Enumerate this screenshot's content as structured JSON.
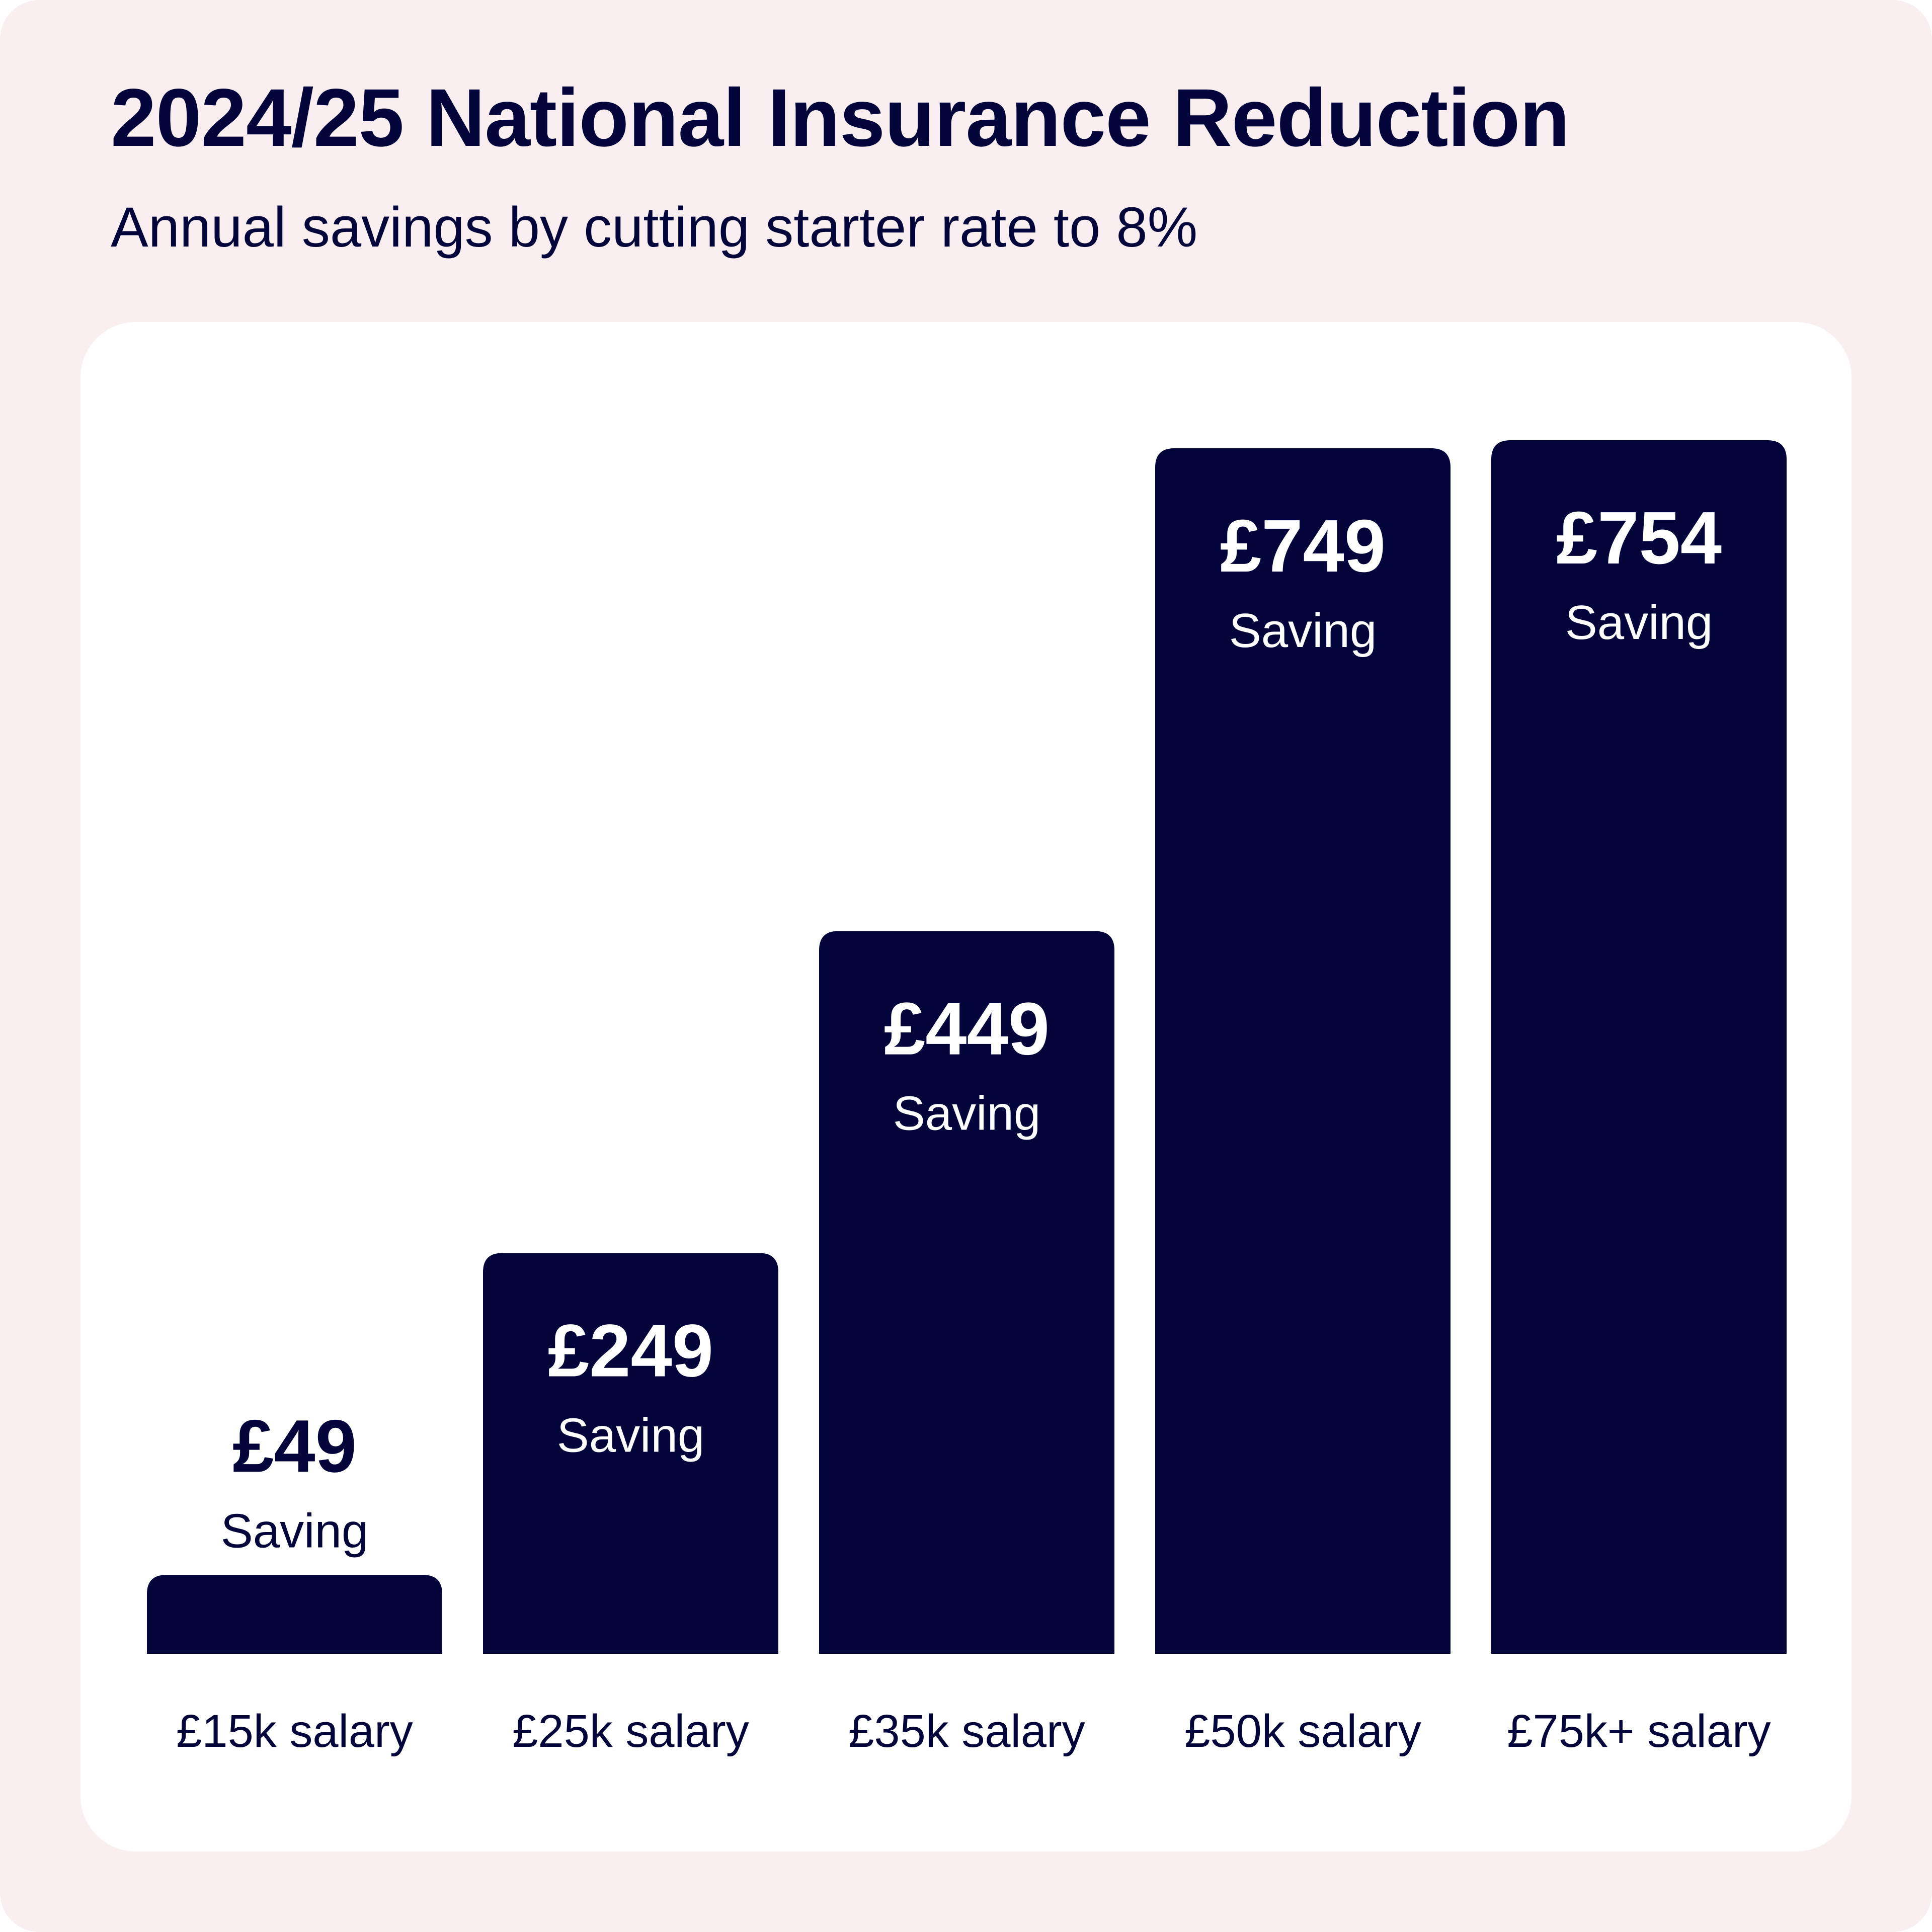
{
  "header": {
    "title": "2024/25 National Insurance Reduction",
    "subtitle": "Annual savings by cutting starter rate to 8%"
  },
  "colors": {
    "background": "#f9eff0",
    "card": "#ffffff",
    "bar": "#03043a",
    "text_dark": "#03043a",
    "text_light": "#ffffff"
  },
  "chart_data": {
    "type": "bar",
    "title": "2024/25 National Insurance Reduction",
    "subtitle": "Annual savings by cutting starter rate to 8%",
    "categories": [
      "£15k salary",
      "£25k salary",
      "£35k salary",
      "£50k salary",
      "£75k+ salary"
    ],
    "values": [
      49,
      249,
      449,
      749,
      754
    ],
    "value_labels": [
      "£49",
      "£249",
      "£449",
      "£749",
      "£754"
    ],
    "bar_caption": "Saving",
    "xlabel": "",
    "ylabel": "",
    "ylim": [
      0,
      754
    ],
    "grid": false,
    "legend": "none"
  }
}
